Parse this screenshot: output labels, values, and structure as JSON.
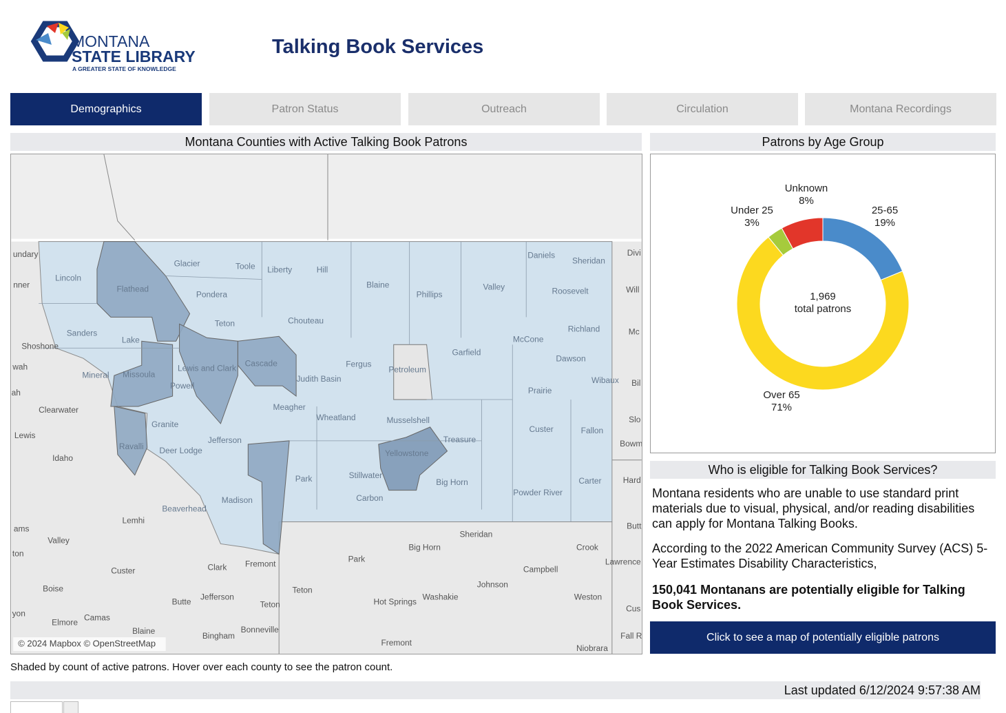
{
  "header": {
    "logo": {
      "line1": "MONTANA",
      "line2": "STATE LIBRARY",
      "tagline": "A GREATER STATE OF KNOWLEDGE"
    },
    "title": "Talking Book Services"
  },
  "tabs": {
    "items": [
      "Demographics",
      "Patron Status",
      "Outreach",
      "Circulation",
      "Montana Recordings"
    ],
    "active": 0
  },
  "map": {
    "title": "Montana Counties with Active Talking Book Patrons",
    "counties": [
      "Lincoln",
      "Flathead",
      "Glacier",
      "Toole",
      "Liberty",
      "Hill",
      "Blaine",
      "Phillips",
      "Valley",
      "Daniels",
      "Sheridan",
      "Roosevelt",
      "Pondera",
      "Teton",
      "Chouteau",
      "Sanders",
      "Lake",
      "Richland",
      "McCone",
      "Garfield",
      "Dawson",
      "Petroleum",
      "Fergus",
      "Judith Basin",
      "Cascade",
      "Lewis and Clark",
      "Mineral",
      "Missoula",
      "Powell",
      "Wibaux",
      "Prairie",
      "Granite",
      "Meagher",
      "Wheatland",
      "Musselshell",
      "Treasure",
      "Custer",
      "Fallon",
      "Ravalli",
      "Deer Lodge",
      "Jefferson",
      "Yellowstone",
      "Park",
      "Stillwater",
      "Big Horn",
      "Carbon",
      "Powder River",
      "Carter",
      "Beaverhead",
      "Madison"
    ],
    "other_places": [
      "undary",
      "nner",
      "Shoshone",
      "wah",
      "ah",
      "Clearwater",
      "Lewis",
      "Idaho",
      "Lemhi",
      "Valley",
      "ams",
      "ton",
      "Custer",
      "Clark",
      "Fremont",
      "Boise",
      "Butte",
      "Jefferson",
      "Teton",
      "Teton",
      "yon",
      "Camas",
      "Elmore",
      "Blaine",
      "Bingham",
      "Bonneville",
      "Park",
      "Big Horn",
      "Sheridan",
      "Crook",
      "Campbell",
      "Johnson",
      "Washakie",
      "Hot Springs",
      "Weston",
      "Fremont",
      "Niobrara",
      "Lawrence",
      "Cus",
      "Fall R",
      "Divi",
      "Will",
      "Mc",
      "Bil",
      "Slo",
      "Bowm",
      "Hard",
      "Butt"
    ],
    "attribution": "© 2024 Mapbox © OpenStreetMap",
    "footnote": "Shaded by count of active patrons. Hover over each county to see the patron count."
  },
  "chart_data": {
    "type": "donut",
    "title": "Patrons by Age Group",
    "categories": [
      "25-65",
      "Over 65",
      "Under 25",
      "Unknown"
    ],
    "values": [
      19,
      71,
      3,
      8
    ],
    "value_labels": [
      "19%",
      "71%",
      "3%",
      "8%"
    ],
    "colors": [
      "#4a8bca",
      "#fcd91f",
      "#a6cb3c",
      "#e2362a"
    ],
    "total": {
      "value": 1969,
      "label": "1,969"
    },
    "total_caption": "total patrons"
  },
  "eligibility": {
    "title": "Who is eligible for Talking Book Services?",
    "paragraphs": [
      "Montana residents who are unable to use standard print materials due to visual, physical, and/or reading disabilities can apply for Montana Talking Books.",
      "According to the 2022 American Community Survey (ACS) 5-Year Estimates Disability Characteristics,",
      "150,041 Montanans are potentially eligible for Talking Book Services."
    ],
    "button": "Click to see a map of potentially eligible patrons"
  },
  "footer": {
    "last_updated": "Last updated 6/12/2024 9:57:38 AM"
  }
}
